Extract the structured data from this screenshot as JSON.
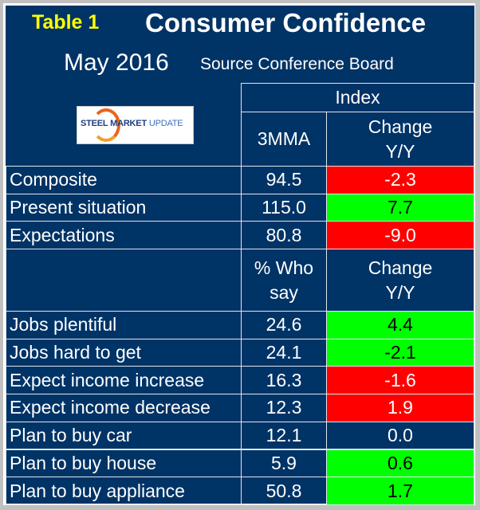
{
  "header": {
    "table_label": "Table 1",
    "title": "Consumer Confidence",
    "date": "May 2016",
    "source": "Source Conference Board",
    "logo_text": "STEEL MARKET UPDATE"
  },
  "section1": {
    "group_header": "Index",
    "col_value": "3MMA",
    "col_change_1": "Change",
    "col_change_2": "Y/Y",
    "rows": [
      {
        "label": "Composite",
        "value": "94.5",
        "change": "-2.3",
        "status": "red"
      },
      {
        "label": "Present situation",
        "value": "115.0",
        "change": "7.7",
        "status": "green"
      },
      {
        "label": "Expectations",
        "value": "80.8",
        "change": "-9.0",
        "status": "red"
      }
    ]
  },
  "section2": {
    "col_value_1": "% Who",
    "col_value_2": "say",
    "col_change_1": "Change",
    "col_change_2": "Y/Y",
    "rows": [
      {
        "label": "Jobs plentiful",
        "value": "24.6",
        "change": "4.4",
        "status": "green"
      },
      {
        "label": "Jobs hard to get",
        "value": "24.1",
        "change": "-2.1",
        "status": "green"
      },
      {
        "label": "Expect income increase",
        "value": "16.3",
        "change": "-1.6",
        "status": "red"
      },
      {
        "label": "Expect income decrease",
        "value": "12.3",
        "change": "1.9",
        "status": "red"
      },
      {
        "label": "Plan to buy car",
        "value": "12.1",
        "change": "0.0",
        "status": "none"
      },
      {
        "label": "Plan to buy house",
        "value": "5.9",
        "change": "0.6",
        "status": "green"
      },
      {
        "label": "Plan to buy appliance",
        "value": "50.8",
        "change": "1.7",
        "status": "green"
      }
    ]
  },
  "colors": {
    "background": "#003366",
    "positive": "#00ff00",
    "negative": "#ff0000",
    "label": "#ffff00"
  }
}
